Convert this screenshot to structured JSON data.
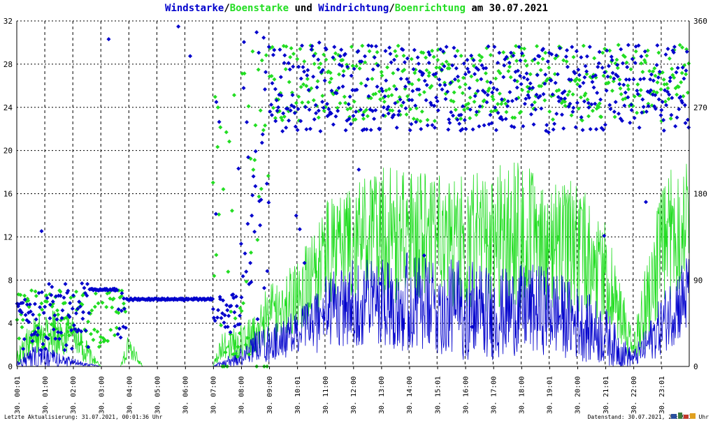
{
  "title": {
    "part1": "Windstarke",
    "sep1": "/",
    "part2": "Boenstarke",
    "part3": " und ",
    "part4": "Windrichtung",
    "sep2": "/",
    "part5": "Boenrichtung",
    "part6": " am 30.07.2021"
  },
  "footer": {
    "left": "Letzte Aktualisierung: 31.07.2021, 00:01:36 Uhr",
    "right": "Datenstand: 30.07.2021, 23:59:30 Uhr"
  },
  "colors": {
    "wind": "#0000cc",
    "gust": "#22dd22",
    "grid": "#000000"
  },
  "chart_data": {
    "type": "line",
    "date": "30.07.2021",
    "x_tick_labels": [
      "30. 00:01",
      "30. 01:00",
      "30. 02:00",
      "30. 03:00",
      "30. 04:00",
      "30. 05:00",
      "30. 06:00",
      "30. 07:00",
      "30. 08:00",
      "30. 09:00",
      "30. 10:01",
      "30. 11:00",
      "30. 12:00",
      "30. 13:00",
      "30. 14:00",
      "30. 15:01",
      "30. 16:00",
      "30. 17:00",
      "30. 18:00",
      "30. 19:01",
      "30. 20:00",
      "30. 21:01",
      "30. 22:00",
      "30. 23:01"
    ],
    "x_range_hours": [
      0,
      24
    ],
    "y_left": {
      "range": [
        0,
        32
      ],
      "ticks": [
        0,
        4,
        8,
        12,
        16,
        20,
        24,
        28,
        32
      ]
    },
    "y_right": {
      "range": [
        0,
        360
      ],
      "ticks": [
        0,
        90,
        180,
        270,
        360
      ]
    },
    "grid": true,
    "series": [
      {
        "name": "Windstarke",
        "kind": "line",
        "axis": "left",
        "color": "#0000cc",
        "profile_hours": [
          0,
          0.5,
          1,
          2,
          3,
          4,
          5,
          6,
          7,
          8,
          8.5,
          9,
          10,
          10.5,
          11,
          12,
          13,
          14,
          15,
          16,
          17,
          18,
          19,
          20,
          21,
          21.5,
          22,
          22.5,
          23,
          23.5,
          24
        ],
        "profile_mean": [
          0.2,
          0.5,
          0.5,
          0.3,
          0,
          0,
          0,
          0,
          0,
          0.5,
          1.5,
          1.5,
          2.5,
          3,
          4,
          4.5,
          5,
          4.5,
          4,
          4,
          3.5,
          4,
          4,
          3,
          2,
          1,
          0.5,
          1.5,
          3,
          4.5,
          5.5
        ],
        "profile_amp": [
          0.3,
          1.5,
          1.5,
          0.5,
          0,
          0,
          0,
          0,
          0,
          1.5,
          2,
          2.5,
          3,
          4,
          5,
          6,
          6,
          7,
          6,
          7,
          6,
          6,
          6,
          5,
          4,
          2.5,
          1,
          2.5,
          4,
          5,
          6
        ]
      },
      {
        "name": "Boenstarke",
        "kind": "line",
        "axis": "left",
        "color": "#22dd22",
        "profile_hours": [
          0,
          0.5,
          1,
          2,
          2.5,
          3,
          3.7,
          4,
          4.5,
          7,
          7.3,
          8,
          8.5,
          9,
          10,
          10.5,
          11,
          12,
          13,
          14,
          15,
          16,
          17,
          18,
          19,
          20,
          21,
          21.5,
          22,
          22.5,
          23,
          23.5,
          24
        ],
        "profile_mean": [
          0.5,
          2,
          2.5,
          2.5,
          1,
          0,
          0,
          1.5,
          0,
          0,
          1.5,
          2,
          2.5,
          4,
          5.5,
          7,
          9,
          10,
          10.5,
          10,
          9.5,
          9.5,
          10,
          10,
          9.5,
          9,
          7,
          4,
          1,
          5,
          9,
          11,
          12
        ],
        "profile_amp": [
          1,
          2.5,
          3,
          3,
          1.5,
          0,
          0,
          2,
          0,
          0,
          2,
          2.5,
          3,
          4,
          5,
          6,
          7,
          8,
          9,
          9,
          9,
          9,
          10,
          10,
          9,
          9,
          7,
          5,
          2,
          6,
          8,
          9,
          9
        ]
      },
      {
        "name": "Windrichtung",
        "kind": "scatter",
        "axis": "right",
        "color": "#0000cc",
        "segments": [
          {
            "from_hours": 0.0,
            "to_hours": 0.25,
            "deg_center": 62,
            "deg_spread": 6
          },
          {
            "from_hours": 0.25,
            "to_hours": 2.6,
            "deg_center": 52,
            "deg_spread": 35
          },
          {
            "from_hours": 2.6,
            "to_hours": 3.6,
            "deg_center": 80,
            "deg_spread": 1
          },
          {
            "from_hours": 3.6,
            "to_hours": 3.9,
            "deg_center": 55,
            "deg_spread": 25
          },
          {
            "from_hours": 3.9,
            "to_hours": 7.0,
            "deg_center": 70,
            "deg_spread": 1
          },
          {
            "from_hours": 7.0,
            "to_hours": 7.9,
            "deg_center": 55,
            "deg_spread": 20
          },
          {
            "from_hours": 7.9,
            "to_hours": 9.0,
            "deg_center": 200,
            "deg_spread": 150
          },
          {
            "from_hours": 9.0,
            "to_hours": 24.0,
            "deg_center": 290,
            "deg_spread": 45
          }
        ],
        "scattered_outliers_deg_range": [
          0,
          360
        ]
      },
      {
        "name": "Boenrichtung",
        "kind": "scatter",
        "axis": "right",
        "color": "#22dd22",
        "segments": [
          {
            "from_hours": 0.0,
            "to_hours": 3.6,
            "deg_center": 50,
            "deg_spread": 30
          },
          {
            "from_hours": 3.6,
            "to_hours": 3.9,
            "deg_center": 65,
            "deg_spread": 15
          },
          {
            "from_hours": 7.0,
            "to_hours": 9.0,
            "deg_center": 150,
            "deg_spread": 180
          },
          {
            "from_hours": 9.0,
            "to_hours": 24.0,
            "deg_center": 295,
            "deg_spread": 40
          }
        ]
      }
    ]
  }
}
